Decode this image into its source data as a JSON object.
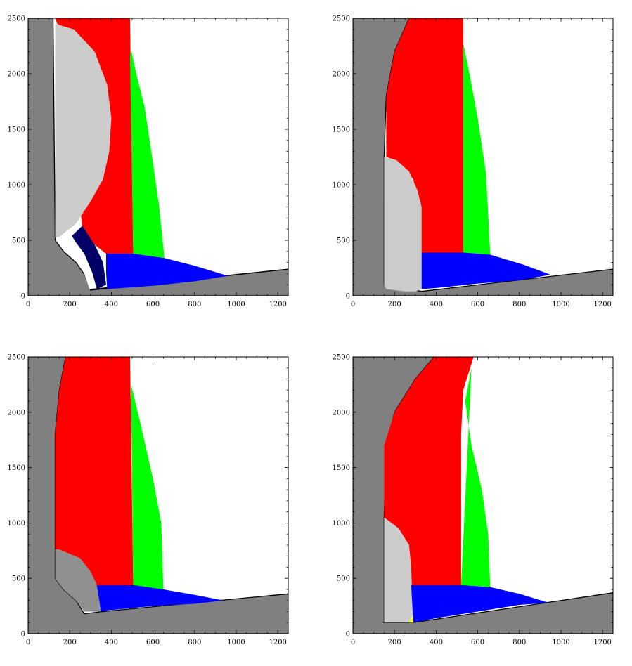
{
  "chart_data": [
    {
      "type": "area",
      "panel": "top-left",
      "xlim": [
        0,
        1250
      ],
      "ylim": [
        0,
        2500
      ],
      "x_ticks": [
        0,
        200,
        400,
        600,
        800,
        1000,
        1200
      ],
      "y_ticks": [
        0,
        500,
        1000,
        1500,
        2000,
        2500
      ],
      "x_tick_labels": [
        "0",
        "200",
        "400",
        "600",
        "800",
        "1000",
        "1200"
      ],
      "y_tick_labels": [
        "0",
        "500",
        "1000",
        "1500",
        "2000",
        "2500"
      ],
      "regions": [
        {
          "name": "gray",
          "color": "#808080",
          "points": [
            [
              0,
              0
            ],
            [
              1250,
              240
            ],
            [
              1250,
              0
            ]
          ]
        },
        {
          "name": "gray",
          "color": "#808080",
          "points": [
            [
              0,
              0
            ],
            [
              0,
              2500
            ],
            [
              120,
              2500
            ],
            [
              130,
              500
            ],
            [
              170,
              400
            ],
            [
              230,
              300
            ],
            [
              275,
              180
            ],
            [
              300,
              50
            ],
            [
              1250,
              240
            ],
            [
              1250,
              0
            ]
          ]
        },
        {
          "name": "red",
          "color": "#ff0000",
          "points": [
            [
              130,
              2500
            ],
            [
              490,
              2500
            ],
            [
              505,
              380
            ],
            [
              380,
              370
            ],
            [
              320,
              460
            ],
            [
              260,
              620
            ],
            [
              235,
              1050
            ],
            [
              300,
              1300
            ],
            [
              360,
              1600
            ],
            [
              350,
              1900
            ],
            [
              300,
              2150
            ],
            [
              230,
              2350
            ],
            [
              140,
              2450
            ]
          ]
        },
        {
          "name": "green",
          "color": "#00ff00",
          "points": [
            [
              495,
              2220
            ],
            [
              520,
              2000
            ],
            [
              560,
              1700
            ],
            [
              600,
              1200
            ],
            [
              630,
              800
            ],
            [
              655,
              340
            ],
            [
              505,
              380
            ],
            [
              490,
              2150
            ]
          ]
        },
        {
          "name": "light-gray",
          "color": "#cccccc",
          "points": [
            [
              130,
              2450
            ],
            [
              220,
              2400
            ],
            [
              320,
              2200
            ],
            [
              380,
              1900
            ],
            [
              400,
              1600
            ],
            [
              390,
              1300
            ],
            [
              360,
              1050
            ],
            [
              300,
              850
            ],
            [
              230,
              650
            ],
            [
              150,
              530
            ],
            [
              130,
              520
            ]
          ]
        },
        {
          "name": "navy",
          "color": "#000066",
          "points": [
            [
              210,
              540
            ],
            [
              260,
              630
            ],
            [
              320,
              460
            ],
            [
              360,
              300
            ],
            [
              375,
              100
            ],
            [
              330,
              60
            ],
            [
              310,
              200
            ],
            [
              270,
              380
            ],
            [
              230,
              480
            ]
          ]
        },
        {
          "name": "blue",
          "color": "#0000ff",
          "points": [
            [
              375,
              380
            ],
            [
              505,
              380
            ],
            [
              655,
              340
            ],
            [
              800,
              270
            ],
            [
              960,
              180
            ],
            [
              800,
              130
            ],
            [
              600,
              90
            ],
            [
              380,
              60
            ],
            [
              375,
              200
            ]
          ]
        },
        {
          "name": "white-edge",
          "color": "#ffffff",
          "points": [
            [
              140,
              500
            ],
            [
              180,
              430
            ],
            [
              230,
              340
            ],
            [
              270,
              200
            ],
            [
              295,
              60
            ],
            [
              305,
              60
            ],
            [
              280,
              200
            ],
            [
              245,
              340
            ],
            [
              195,
              440
            ],
            [
              150,
              510
            ]
          ]
        }
      ]
    },
    {
      "type": "area",
      "panel": "top-right",
      "xlim": [
        0,
        1250
      ],
      "ylim": [
        0,
        2500
      ],
      "x_ticks": [
        0,
        200,
        400,
        600,
        800,
        1000,
        1200
      ],
      "y_ticks": [
        0,
        500,
        1000,
        1500,
        2000,
        2500
      ],
      "x_tick_labels": [
        "0",
        "200",
        "400",
        "600",
        "800",
        "1000",
        "1200"
      ],
      "y_tick_labels": [
        "0",
        "500",
        "1000",
        "1500",
        "2000",
        "2500"
      ],
      "regions": [
        {
          "name": "gray",
          "color": "#808080",
          "points": [
            [
              0,
              0
            ],
            [
              0,
              2500
            ],
            [
              270,
              2500
            ],
            [
              200,
              2200
            ],
            [
              160,
              1800
            ],
            [
              150,
              1250
            ],
            [
              150,
              100
            ],
            [
              330,
              40
            ],
            [
              1250,
              240
            ],
            [
              1250,
              0
            ]
          ]
        },
        {
          "name": "red",
          "color": "#ff0000",
          "points": [
            [
              270,
              2500
            ],
            [
              530,
              2500
            ],
            [
              530,
              380
            ],
            [
              330,
              380
            ],
            [
              320,
              800
            ],
            [
              290,
              1050
            ],
            [
              210,
              1220
            ],
            [
              160,
              1250
            ],
            [
              160,
              1800
            ],
            [
              200,
              2200
            ]
          ]
        },
        {
          "name": "green",
          "color": "#00ff00",
          "points": [
            [
              530,
              2280
            ],
            [
              560,
              2000
            ],
            [
              600,
              1600
            ],
            [
              640,
              1100
            ],
            [
              660,
              370
            ],
            [
              530,
              380
            ]
          ]
        },
        {
          "name": "light-gray",
          "color": "#cccccc",
          "points": [
            [
              150,
              1250
            ],
            [
              210,
              1220
            ],
            [
              270,
              1120
            ],
            [
              310,
              950
            ],
            [
              330,
              800
            ],
            [
              330,
              60
            ],
            [
              300,
              40
            ],
            [
              250,
              40
            ],
            [
              160,
              60
            ],
            [
              150,
              100
            ]
          ]
        },
        {
          "name": "blue",
          "color": "#0000ff",
          "points": [
            [
              330,
              390
            ],
            [
              530,
              390
            ],
            [
              660,
              370
            ],
            [
              820,
              280
            ],
            [
              950,
              190
            ],
            [
              800,
              140
            ],
            [
              600,
              110
            ],
            [
              400,
              70
            ],
            [
              330,
              60
            ]
          ]
        }
      ]
    },
    {
      "type": "area",
      "panel": "bottom-left",
      "xlim": [
        0,
        1250
      ],
      "ylim": [
        0,
        2500
      ],
      "x_ticks": [
        0,
        200,
        400,
        600,
        800,
        1000,
        1200
      ],
      "y_ticks": [
        0,
        500,
        1000,
        1500,
        2000,
        2500
      ],
      "x_tick_labels": [
        "0",
        "200",
        "400",
        "600",
        "800",
        "1000",
        "1200"
      ],
      "y_tick_labels": [
        "0",
        "500",
        "1000",
        "1500",
        "2000",
        "2500"
      ],
      "regions": [
        {
          "name": "gray",
          "color": "#808080",
          "points": [
            [
              0,
              0
            ],
            [
              0,
              2500
            ],
            [
              180,
              2500
            ],
            [
              150,
              2200
            ],
            [
              130,
              1800
            ],
            [
              130,
              500
            ],
            [
              170,
              400
            ],
            [
              230,
              300
            ],
            [
              270,
              180
            ],
            [
              360,
              200
            ],
            [
              1250,
              360
            ],
            [
              1250,
              0
            ]
          ]
        },
        {
          "name": "red",
          "color": "#ff0000",
          "points": [
            [
              180,
              2500
            ],
            [
              490,
              2500
            ],
            [
              505,
              440
            ],
            [
              330,
              440
            ],
            [
              300,
              560
            ],
            [
              250,
              680
            ],
            [
              150,
              760
            ],
            [
              130,
              760
            ],
            [
              130,
              1800
            ],
            [
              150,
              2200
            ]
          ]
        },
        {
          "name": "green",
          "color": "#00ff00",
          "points": [
            [
              495,
              2250
            ],
            [
              540,
              1900
            ],
            [
              600,
              1400
            ],
            [
              640,
              1000
            ],
            [
              650,
              400
            ],
            [
              505,
              420
            ],
            [
              495,
              2200
            ]
          ]
        },
        {
          "name": "light-gray",
          "color": "#909090",
          "points": [
            [
              130,
              760
            ],
            [
              150,
              760
            ],
            [
              250,
              680
            ],
            [
              300,
              560
            ],
            [
              330,
              440
            ],
            [
              350,
              200
            ],
            [
              270,
              200
            ],
            [
              230,
              300
            ],
            [
              170,
              400
            ],
            [
              130,
              500
            ]
          ]
        },
        {
          "name": "blue",
          "color": "#0000ff",
          "points": [
            [
              330,
              440
            ],
            [
              505,
              440
            ],
            [
              650,
              400
            ],
            [
              800,
              350
            ],
            [
              940,
              300
            ],
            [
              800,
              270
            ],
            [
              600,
              250
            ],
            [
              380,
              210
            ],
            [
              350,
              200
            ]
          ]
        }
      ]
    },
    {
      "type": "area",
      "panel": "bottom-right",
      "xlim": [
        0,
        1250
      ],
      "ylim": [
        0,
        2500
      ],
      "x_ticks": [
        0,
        200,
        400,
        600,
        800,
        1000,
        1200
      ],
      "y_ticks": [
        0,
        500,
        1000,
        1500,
        2000,
        2500
      ],
      "x_tick_labels": [
        "0",
        "200",
        "400",
        "600",
        "800",
        "1000",
        "1200"
      ],
      "y_tick_labels": [
        "0",
        "500",
        "1000",
        "1500",
        "2000",
        "2500"
      ],
      "regions": [
        {
          "name": "gray",
          "color": "#808080",
          "points": [
            [
              0,
              0
            ],
            [
              0,
              2500
            ],
            [
              390,
              2500
            ],
            [
              300,
              2300
            ],
            [
              200,
              2000
            ],
            [
              160,
              1700
            ],
            [
              150,
              1050
            ],
            [
              150,
              100
            ],
            [
              290,
              100
            ],
            [
              1250,
              370
            ],
            [
              1250,
              0
            ]
          ]
        },
        {
          "name": "red",
          "color": "#ff0000",
          "points": [
            [
              390,
              2500
            ],
            [
              580,
              2500
            ],
            [
              530,
              2200
            ],
            [
              520,
              1800
            ],
            [
              520,
              440
            ],
            [
              280,
              440
            ],
            [
              270,
              800
            ],
            [
              220,
              950
            ],
            [
              150,
              1050
            ],
            [
              150,
              1700
            ],
            [
              200,
              2000
            ],
            [
              300,
              2300
            ]
          ]
        },
        {
          "name": "green",
          "color": "#00ff00",
          "points": [
            [
              570,
              2400
            ],
            [
              540,
              2100
            ],
            [
              570,
              1700
            ],
            [
              620,
              1300
            ],
            [
              650,
              900
            ],
            [
              660,
              420
            ],
            [
              520,
              440
            ]
          ]
        },
        {
          "name": "light-gray",
          "color": "#cccccc",
          "points": [
            [
              150,
              1050
            ],
            [
              220,
              950
            ],
            [
              270,
              800
            ],
            [
              280,
              600
            ],
            [
              290,
              100
            ],
            [
              150,
              100
            ]
          ]
        },
        {
          "name": "yellow",
          "color": "#ffff00",
          "points": [
            [
              270,
              100
            ],
            [
              295,
              100
            ],
            [
              300,
              140
            ],
            [
              285,
              160
            ]
          ]
        },
        {
          "name": "blue",
          "color": "#0000ff",
          "points": [
            [
              280,
              440
            ],
            [
              520,
              440
            ],
            [
              660,
              420
            ],
            [
              800,
              360
            ],
            [
              940,
              280
            ],
            [
              800,
              260
            ],
            [
              600,
              200
            ],
            [
              400,
              140
            ],
            [
              290,
              100
            ]
          ]
        }
      ]
    }
  ]
}
